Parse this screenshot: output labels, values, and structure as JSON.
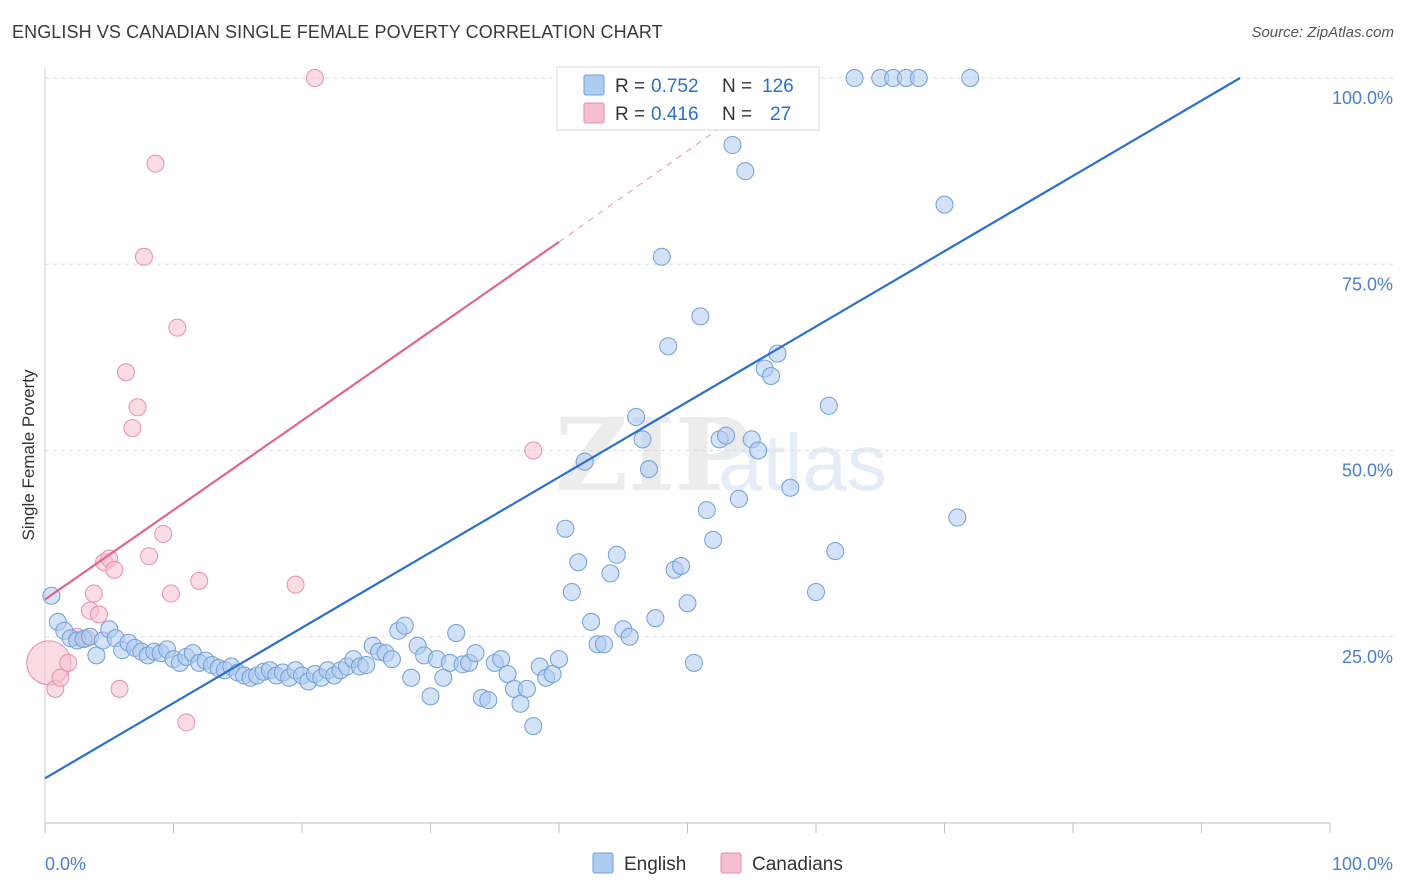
{
  "title": "ENGLISH VS CANADIAN SINGLE FEMALE POVERTY CORRELATION CHART",
  "source": "Source: ZipAtlas.com",
  "watermark": {
    "zip": "ZIP",
    "atlas": "atlas"
  },
  "colors": {
    "english_fill": "#aecbf0",
    "english_stroke": "#6f9fd8",
    "english_line": "#2a6fd0",
    "canadian_fill": "#f5bfcf",
    "canadian_stroke": "#e98fab",
    "canadian_line": "#e0648c",
    "tick_label": "#4a7fd0",
    "grid": "#dddddd"
  },
  "legend": {
    "rows": [
      {
        "r_label": "R = ",
        "r_value": "0.752",
        "n_label": "N = ",
        "n_value": "126"
      },
      {
        "r_label": "R = ",
        "r_value": "0.416",
        "n_label": "N = ",
        "n_value": "27"
      }
    ]
  },
  "bottom_legend": [
    "English",
    "Canadians"
  ],
  "chart_data": {
    "type": "scatter",
    "title": "ENGLISH VS CANADIAN SINGLE FEMALE POVERTY CORRELATION CHART",
    "xlabel": "",
    "ylabel": "Single Female Poverty",
    "xlim": [
      0,
      100
    ],
    "ylim": [
      0,
      100
    ],
    "x_tick_labels": [
      "0.0%",
      "100.0%"
    ],
    "y_tick_labels": [
      "25.0%",
      "50.0%",
      "75.0%",
      "100.0%"
    ],
    "y_ticks": [
      25,
      50,
      75,
      100
    ],
    "grid": true,
    "legend_position": "top-center",
    "series": [
      {
        "name": "English",
        "r": 0.752,
        "n": 126,
        "trendline": {
          "x": [
            0,
            93
          ],
          "y": [
            6,
            100
          ]
        },
        "points": [
          [
            0.5,
            30.5
          ],
          [
            1,
            27
          ],
          [
            1.5,
            25.8
          ],
          [
            2,
            24.8
          ],
          [
            2.5,
            24.5
          ],
          [
            3,
            24.7
          ],
          [
            3.5,
            25
          ],
          [
            4,
            22.5
          ],
          [
            4.5,
            24.5
          ],
          [
            5,
            26
          ],
          [
            5.5,
            24.8
          ],
          [
            6,
            23.2
          ],
          [
            6.5,
            24.2
          ],
          [
            7,
            23.5
          ],
          [
            7.5,
            23
          ],
          [
            8,
            22.5
          ],
          [
            8.5,
            23
          ],
          [
            9,
            22.8
          ],
          [
            9.5,
            23.3
          ],
          [
            10,
            22
          ],
          [
            10.5,
            21.5
          ],
          [
            11,
            22.3
          ],
          [
            11.5,
            22.8
          ],
          [
            12,
            21.5
          ],
          [
            12.5,
            21.8
          ],
          [
            13,
            21.2
          ],
          [
            13.5,
            20.8
          ],
          [
            14,
            20.5
          ],
          [
            14.5,
            21
          ],
          [
            15,
            20.2
          ],
          [
            15.5,
            19.8
          ],
          [
            16,
            19.5
          ],
          [
            16.5,
            19.8
          ],
          [
            17,
            20.3
          ],
          [
            17.5,
            20.5
          ],
          [
            18,
            19.8
          ],
          [
            18.5,
            20.2
          ],
          [
            19,
            19.5
          ],
          [
            19.5,
            20.5
          ],
          [
            20,
            19.8
          ],
          [
            20.5,
            19
          ],
          [
            21,
            20
          ],
          [
            21.5,
            19.5
          ],
          [
            22,
            20.5
          ],
          [
            22.5,
            19.8
          ],
          [
            23,
            20.5
          ],
          [
            23.5,
            21
          ],
          [
            24,
            22
          ],
          [
            24.5,
            21
          ],
          [
            25,
            21.2
          ],
          [
            25.5,
            23.8
          ],
          [
            26,
            23
          ],
          [
            26.5,
            22.8
          ],
          [
            27,
            22
          ],
          [
            27.5,
            25.8
          ],
          [
            28,
            26.5
          ],
          [
            28.5,
            19.5
          ],
          [
            29,
            23.8
          ],
          [
            29.5,
            22.5
          ],
          [
            30,
            17
          ],
          [
            30.5,
            22
          ],
          [
            31,
            19.5
          ],
          [
            31.5,
            21.5
          ],
          [
            32,
            25.5
          ],
          [
            32.5,
            21.3
          ],
          [
            33,
            21.5
          ],
          [
            33.5,
            22.8
          ],
          [
            34,
            16.8
          ],
          [
            34.5,
            16.5
          ],
          [
            35,
            21.5
          ],
          [
            35.5,
            22
          ],
          [
            36,
            20
          ],
          [
            36.5,
            18
          ],
          [
            37,
            16
          ],
          [
            37.5,
            18
          ],
          [
            38,
            13
          ],
          [
            38.5,
            21
          ],
          [
            39,
            19.5
          ],
          [
            39.5,
            20
          ],
          [
            40,
            22
          ],
          [
            40.5,
            39.5
          ],
          [
            41,
            31
          ],
          [
            41.5,
            35
          ],
          [
            42,
            48.5
          ],
          [
            42.5,
            27
          ],
          [
            43,
            24
          ],
          [
            43.5,
            24
          ],
          [
            44,
            33.5
          ],
          [
            44.5,
            36
          ],
          [
            45,
            26
          ],
          [
            45.5,
            25
          ],
          [
            46,
            54.5
          ],
          [
            46.5,
            51.5
          ],
          [
            47,
            47.5
          ],
          [
            47.5,
            27.5
          ],
          [
            48,
            76
          ],
          [
            48.5,
            64
          ],
          [
            49,
            34
          ],
          [
            49.5,
            34.5
          ],
          [
            50,
            29.5
          ],
          [
            50.5,
            21.5
          ],
          [
            51,
            68
          ],
          [
            51.5,
            42
          ],
          [
            52,
            38
          ],
          [
            52.5,
            51.5
          ],
          [
            53,
            52
          ],
          [
            53.5,
            91
          ],
          [
            54,
            43.5
          ],
          [
            54.5,
            87.5
          ],
          [
            55,
            51.5
          ],
          [
            55.5,
            50
          ],
          [
            56,
            61
          ],
          [
            56.5,
            60
          ],
          [
            57,
            63
          ],
          [
            58,
            45
          ],
          [
            60,
            31
          ],
          [
            61,
            56
          ],
          [
            61.5,
            36.5
          ],
          [
            63,
            100
          ],
          [
            65,
            100
          ],
          [
            66,
            100
          ],
          [
            67,
            100
          ],
          [
            68,
            100
          ],
          [
            70,
            83
          ],
          [
            71,
            41
          ],
          [
            72,
            100
          ]
        ]
      },
      {
        "name": "Canadians",
        "r": 0.416,
        "n": 27,
        "trendline": {
          "x": [
            0,
            40
          ],
          "y": [
            30,
            78
          ]
        },
        "trendline_dashed": {
          "x": [
            40,
            53.5
          ],
          "y": [
            78,
            94.5
          ]
        },
        "points": [
          [
            0.3,
            21.5
          ],
          [
            0.8,
            18
          ],
          [
            1.2,
            19.5
          ],
          [
            1.8,
            21.5
          ],
          [
            2.5,
            25
          ],
          [
            3.2,
            24.8
          ],
          [
            3.5,
            28.5
          ],
          [
            3.8,
            30.8
          ],
          [
            4.2,
            28
          ],
          [
            4.6,
            35
          ],
          [
            5,
            35.5
          ],
          [
            5.4,
            34
          ],
          [
            5.8,
            18
          ],
          [
            6.3,
            60.5
          ],
          [
            6.8,
            53
          ],
          [
            7.2,
            55.8
          ],
          [
            7.7,
            76
          ],
          [
            8.1,
            35.8
          ],
          [
            8.6,
            88.5
          ],
          [
            9.2,
            38.8
          ],
          [
            9.8,
            30.8
          ],
          [
            10.3,
            66.5
          ],
          [
            11,
            13.5
          ],
          [
            12,
            32.5
          ],
          [
            19.5,
            32
          ],
          [
            21,
            100
          ],
          [
            38,
            50
          ]
        ]
      }
    ]
  }
}
